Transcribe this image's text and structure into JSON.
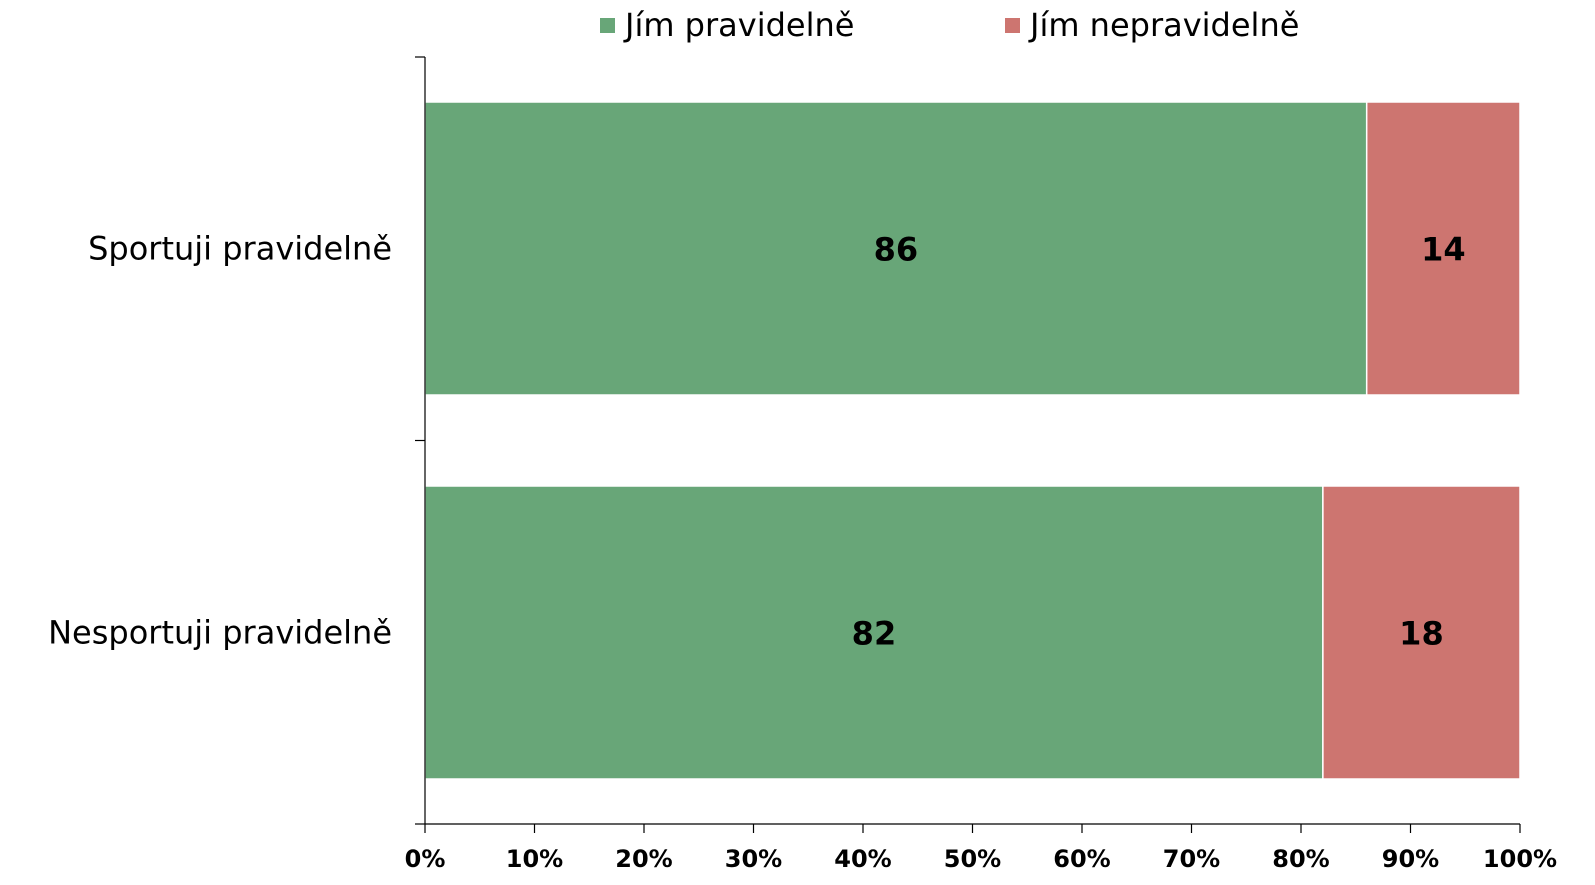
{
  "chart_data": {
    "type": "bar",
    "orientation": "horizontal",
    "stacked": "percent",
    "categories": [
      "Sportuji pravidelně",
      "Nesportuji pravidelně"
    ],
    "series": [
      {
        "name": "Jím pravidelně",
        "values": [
          86,
          82
        ],
        "color": "#68a678"
      },
      {
        "name": "Jím nepravidelně",
        "values": [
          14,
          18
        ],
        "color": "#cd7570"
      }
    ],
    "xlim": [
      0,
      100
    ],
    "xticks": [
      0,
      10,
      20,
      30,
      40,
      50,
      60,
      70,
      80,
      90,
      100
    ],
    "tick_labels": [
      "0%",
      "10%",
      "20%",
      "30%",
      "40%",
      "50%",
      "60%",
      "70%",
      "80%",
      "90%",
      "100%"
    ],
    "grid": false,
    "legend": "top-center"
  }
}
